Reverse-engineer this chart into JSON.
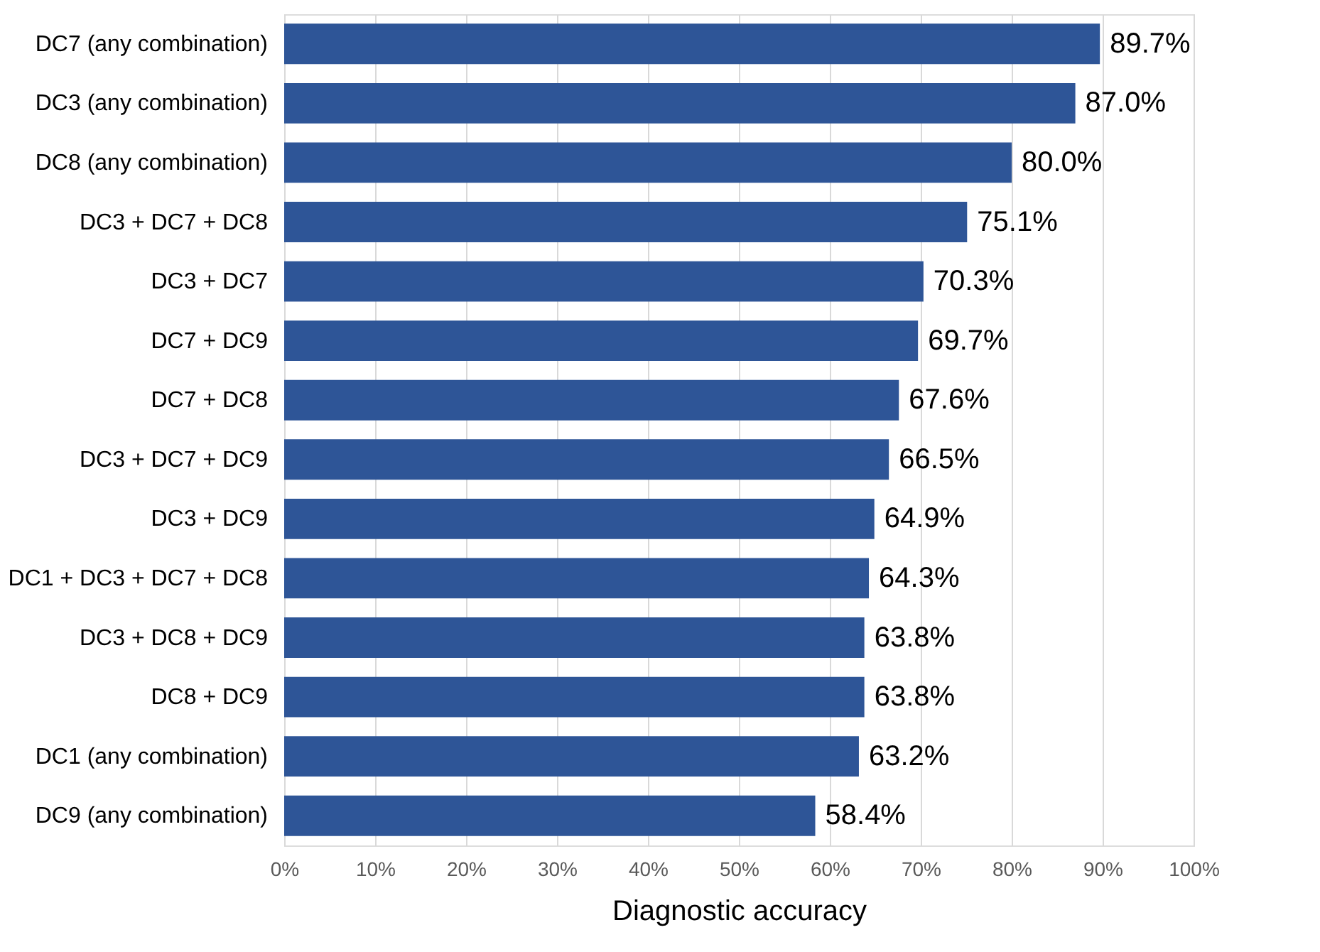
{
  "chart_data": {
    "type": "bar",
    "orientation": "horizontal",
    "xlabel": "Diagnostic accuracy",
    "categories": [
      "DC7 (any combination)",
      "DC3 (any combination)",
      "DC8 (any combination)",
      "DC3 + DC7 + DC8",
      "DC3 + DC7",
      "DC7 + DC9",
      "DC7 + DC8",
      "DC3 + DC7 + DC9",
      "DC3 + DC9",
      "DC1 + DC3 + DC7 + DC8",
      "DC3 + DC8 + DC9",
      "DC8 + DC9",
      "DC1 (any combination)",
      "DC9 (any combination)"
    ],
    "values": [
      89.7,
      87.0,
      80.0,
      75.1,
      70.3,
      69.7,
      67.6,
      66.5,
      64.9,
      64.3,
      63.8,
      63.8,
      63.2,
      58.4
    ],
    "value_labels": [
      "89.7%",
      "87.0%",
      "80.0%",
      "75.1%",
      "70.3%",
      "69.7%",
      "67.6%",
      "66.5%",
      "64.9%",
      "64.3%",
      "63.8%",
      "63.8%",
      "63.2%",
      "58.4%"
    ],
    "color": "#2e5597",
    "xlim": [
      0,
      100
    ],
    "xticks": [
      {
        "value": 0,
        "label": "0%"
      },
      {
        "value": 10,
        "label": "10%"
      },
      {
        "value": 20,
        "label": "20%"
      },
      {
        "value": 30,
        "label": "30%"
      },
      {
        "value": 40,
        "label": "40%"
      },
      {
        "value": 50,
        "label": "50%"
      },
      {
        "value": 60,
        "label": "60%"
      },
      {
        "value": 70,
        "label": "70%"
      },
      {
        "value": 80,
        "label": "80%"
      },
      {
        "value": 90,
        "label": "90%"
      },
      {
        "value": 100,
        "label": "100%"
      }
    ],
    "grid": "x"
  }
}
